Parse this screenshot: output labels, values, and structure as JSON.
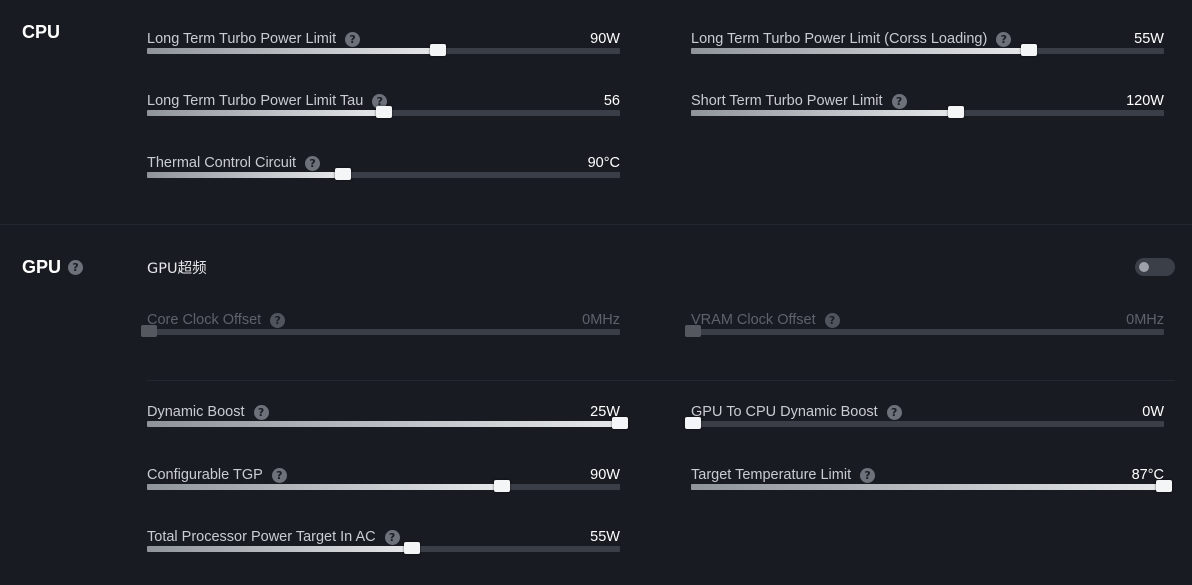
{
  "cpu": {
    "title": "CPU",
    "settings": [
      {
        "id": "long-term-turbo-power-limit",
        "label": "Long Term Turbo Power Limit",
        "value": "90W",
        "level": 0.615
      },
      {
        "id": "long-term-turbo-power-limit-cross-loading",
        "label": "Long Term Turbo Power Limit (Corss Loading)",
        "value": "55W",
        "level": 0.715
      },
      {
        "id": "long-term-turbo-power-limit-tau",
        "label": "Long Term Turbo Power Limit Tau",
        "value": "56",
        "level": 0.5
      },
      {
        "id": "short-term-turbo-power-limit",
        "label": "Short Term Turbo Power Limit",
        "value": "120W",
        "level": 0.56
      },
      {
        "id": "thermal-control-circuit",
        "label": "Thermal Control Circuit",
        "value": "90°C",
        "level": 0.415
      }
    ]
  },
  "gpu": {
    "title": "GPU",
    "overclock": {
      "label": "GPU超频",
      "enabled": false
    },
    "clock_settings": [
      {
        "id": "core-clock-offset",
        "label": "Core Clock Offset",
        "value": "0MHz",
        "level": 0.0,
        "disabled": true
      },
      {
        "id": "vram-clock-offset",
        "label": "VRAM Clock Offset",
        "value": "0MHz",
        "level": 0.0,
        "disabled": true
      }
    ],
    "power_settings": [
      {
        "id": "dynamic-boost",
        "label": "Dynamic Boost",
        "value": "25W",
        "level": 1.0
      },
      {
        "id": "gpu-to-cpu-dynamic-boost",
        "label": "GPU To CPU Dynamic Boost",
        "value": "0W",
        "level": 0.0
      },
      {
        "id": "configurable-tgp",
        "label": "Configurable TGP",
        "value": "90W",
        "level": 0.75
      },
      {
        "id": "target-temperature-limit",
        "label": "Target Temperature Limit",
        "value": "87°C",
        "level": 1.0
      },
      {
        "id": "total-processor-power-target-in-ac",
        "label": "Total Processor Power Target In AC",
        "value": "55W",
        "level": 0.56
      }
    ]
  },
  "help_glyph": "?",
  "colors": {
    "background": "#181b22",
    "track": "#3a3e47",
    "thumb": "#f4f5f6"
  }
}
